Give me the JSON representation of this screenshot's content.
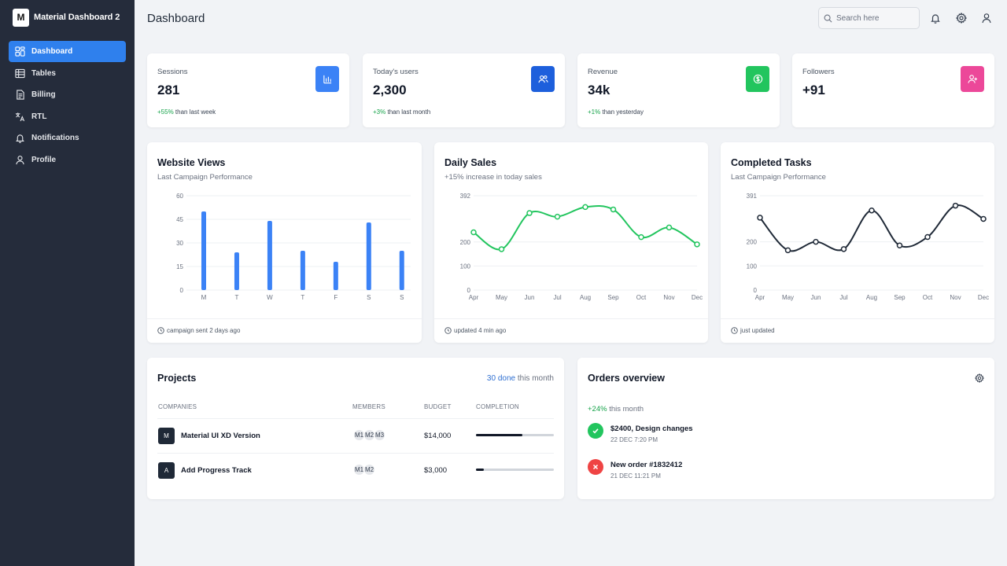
{
  "brand": {
    "logo_letter": "M",
    "name": "Material Dashboard 2"
  },
  "sidebar": {
    "items": [
      {
        "label": "Dashboard",
        "icon": "dashboard-icon",
        "active": true
      },
      {
        "label": "Tables",
        "icon": "table-icon"
      },
      {
        "label": "Billing",
        "icon": "receipt-icon"
      },
      {
        "label": "RTL",
        "icon": "translate-icon"
      },
      {
        "label": "Notifications",
        "icon": "bell-icon"
      },
      {
        "label": "Profile",
        "icon": "user-icon"
      }
    ]
  },
  "header": {
    "title": "Dashboard",
    "search_placeholder": "Search here"
  },
  "stats": [
    {
      "label": "Sessions",
      "value": "281",
      "change": "+55%",
      "suffix": "than last week",
      "icon": "chart-bar-icon",
      "color": "#3b82f6"
    },
    {
      "label": "Today's users",
      "value": "2,300",
      "change": "+3%",
      "suffix": "than last month",
      "icon": "users-icon",
      "color": "#1d5fdc"
    },
    {
      "label": "Revenue",
      "value": "34k",
      "change": "+1%",
      "suffix": "than yesterday",
      "icon": "dollar-icon",
      "color": "#22c55e"
    },
    {
      "label": "Followers",
      "value": "+91",
      "change": "",
      "suffix": "",
      "icon": "user-plus-icon",
      "color": "#ec4899"
    }
  ],
  "charts": {
    "views": {
      "title": "Website Views",
      "subtitle": "Last Campaign Performance",
      "footer": "campaign sent 2 days ago"
    },
    "sales": {
      "title": "Daily Sales",
      "subtitle": "+15% increase in today sales",
      "footer": "updated 4 min ago"
    },
    "tasks": {
      "title": "Completed Tasks",
      "subtitle": "Last Campaign Performance",
      "footer": "just updated"
    }
  },
  "chart_data": [
    {
      "type": "bar",
      "categories": [
        "M",
        "T",
        "W",
        "T",
        "F",
        "S",
        "S"
      ],
      "values": [
        50,
        24,
        44,
        25,
        18,
        43,
        25
      ],
      "yticks": [
        "0",
        "15",
        "30",
        "45",
        "60"
      ],
      "ylim": [
        0,
        60
      ],
      "color": "#3b82f6"
    },
    {
      "type": "line",
      "categories": [
        "Apr",
        "May",
        "Jun",
        "Jul",
        "Aug",
        "Sep",
        "Oct",
        "Nov",
        "Dec"
      ],
      "values": [
        240,
        170,
        320,
        305,
        345,
        335,
        220,
        260,
        190
      ],
      "yticks": [
        "0",
        "100",
        "200",
        "392"
      ],
      "ylim": [
        0,
        392
      ],
      "color": "#22c55e"
    },
    {
      "type": "line",
      "categories": [
        "Apr",
        "May",
        "Jun",
        "Jul",
        "Aug",
        "Sep",
        "Oct",
        "Nov",
        "Dec"
      ],
      "values": [
        300,
        165,
        200,
        170,
        330,
        185,
        220,
        350,
        295
      ],
      "yticks": [
        "0",
        "100",
        "200",
        "391"
      ],
      "ylim": [
        0,
        391
      ],
      "color": "#1f2937"
    }
  ],
  "projects": {
    "title": "Projects",
    "done_count": "30 done",
    "done_suffix": "this month",
    "columns": [
      "COMPANIES",
      "MEMBERS",
      "BUDGET",
      "COMPLETION"
    ],
    "rows": [
      {
        "logo": "M",
        "name": "Material UI XD Version",
        "members": [
          "M1",
          "M2",
          "M3"
        ],
        "budget": "$14,000",
        "completion": 0.6
      },
      {
        "logo": "A",
        "name": "Add Progress Track",
        "members": [
          "M1",
          "M2"
        ],
        "budget": "$3,000",
        "completion": 0.1
      }
    ]
  },
  "orders": {
    "title": "Orders overview",
    "change": "+24%",
    "change_suffix": "this month",
    "items": [
      {
        "text": "$2400, Design changes",
        "time": "22 DEC 7:20 PM",
        "status": "success",
        "color": "#22c55e"
      },
      {
        "text": "New order #1832412",
        "time": "21 DEC 11:21 PM",
        "status": "error",
        "color": "#ef4444"
      }
    ]
  }
}
